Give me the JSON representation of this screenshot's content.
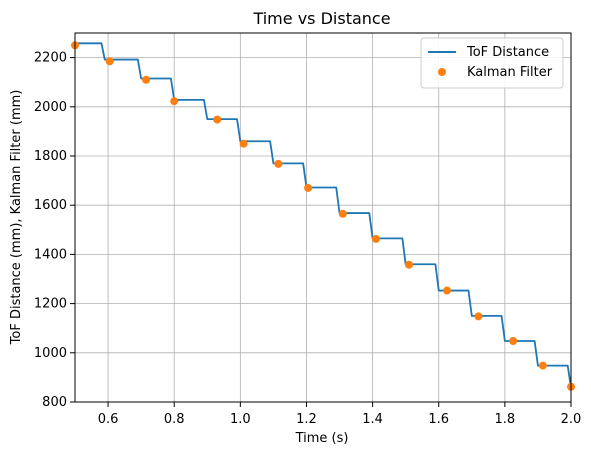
{
  "chart_data": {
    "type": "line",
    "title": "Time vs Distance",
    "xlabel": "Time (s)",
    "ylabel": "ToF Distance (mm), Kalman Filter (mm)",
    "xlim": [
      0.5,
      2.0
    ],
    "ylim": [
      800,
      2300
    ],
    "xticks": [
      0.6,
      0.8,
      1.0,
      1.2,
      1.4,
      1.6,
      1.8,
      2.0
    ],
    "xtick_labels": [
      "0.6",
      "0.8",
      "1.0",
      "1.2",
      "1.4",
      "1.6",
      "1.8",
      "2.0"
    ],
    "yticks": [
      800,
      1000,
      1200,
      1400,
      1600,
      1800,
      2000,
      2200
    ],
    "ytick_labels": [
      "800",
      "1000",
      "1200",
      "1400",
      "1600",
      "1800",
      "2000",
      "2200"
    ],
    "grid": true,
    "legend_position": "top-right",
    "series": [
      {
        "name": "ToF Distance",
        "style": "line",
        "color": "#1f77b4",
        "x": [
          0.5,
          0.58,
          0.59,
          0.69,
          0.7,
          0.79,
          0.8,
          0.89,
          0.9,
          0.99,
          1.0,
          1.09,
          1.1,
          1.19,
          1.2,
          1.29,
          1.3,
          1.39,
          1.4,
          1.49,
          1.5,
          1.59,
          1.6,
          1.69,
          1.7,
          1.79,
          1.8,
          1.89,
          1.9,
          1.99,
          2.0
        ],
        "y": [
          2258,
          2258,
          2192,
          2192,
          2115,
          2115,
          2028,
          2028,
          1950,
          1950,
          1860,
          1860,
          1770,
          1770,
          1672,
          1672,
          1568,
          1568,
          1465,
          1465,
          1360,
          1360,
          1253,
          1253,
          1150,
          1150,
          1048,
          1048,
          948,
          948,
          858
        ]
      },
      {
        "name": "Kalman Filter",
        "style": "marker",
        "color": "#ff7f0e",
        "x": [
          0.5,
          0.605,
          0.715,
          0.8,
          0.93,
          1.01,
          1.115,
          1.205,
          1.31,
          1.41,
          1.51,
          1.625,
          1.72,
          1.825,
          1.915,
          2.0
        ],
        "y": [
          2250,
          2185,
          2110,
          2023,
          1948,
          1850,
          1768,
          1670,
          1565,
          1463,
          1358,
          1253,
          1148,
          1048,
          948,
          862
        ]
      }
    ]
  }
}
